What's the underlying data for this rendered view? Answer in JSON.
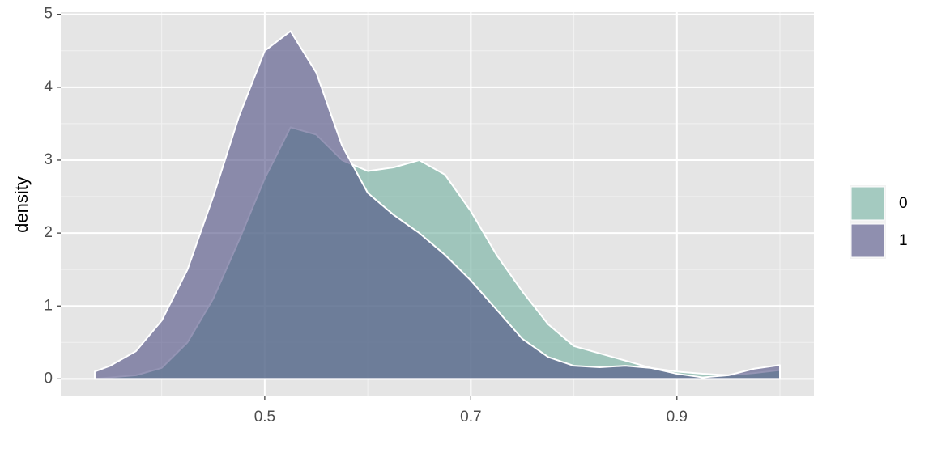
{
  "chart_data": {
    "type": "density",
    "y_label": "density",
    "x": [
      0.335,
      0.35,
      0.375,
      0.4,
      0.425,
      0.45,
      0.475,
      0.5,
      0.525,
      0.55,
      0.575,
      0.6,
      0.625,
      0.65,
      0.675,
      0.7,
      0.725,
      0.75,
      0.775,
      0.8,
      0.825,
      0.85,
      0.875,
      0.9,
      0.925,
      0.95,
      0.975,
      1.0
    ],
    "series": [
      {
        "name": "0",
        "color": "#70AF9E",
        "values": [
          0.0,
          0.02,
          0.05,
          0.15,
          0.5,
          1.1,
          1.9,
          2.75,
          3.45,
          3.35,
          3.0,
          2.85,
          2.9,
          3.0,
          2.8,
          2.3,
          1.7,
          1.2,
          0.75,
          0.45,
          0.35,
          0.25,
          0.15,
          0.1,
          0.07,
          0.05,
          0.08,
          0.12
        ]
      },
      {
        "name": "1",
        "color": "#4D4C82",
        "values": [
          0.1,
          0.18,
          0.38,
          0.8,
          1.5,
          2.5,
          3.6,
          4.5,
          4.77,
          4.2,
          3.2,
          2.55,
          2.25,
          2.0,
          1.7,
          1.35,
          0.95,
          0.55,
          0.3,
          0.18,
          0.16,
          0.18,
          0.15,
          0.07,
          0.02,
          0.05,
          0.14,
          0.19
        ]
      }
    ],
    "xlim": [
      0.302,
      1.033
    ],
    "ylim": [
      -0.24,
      5.03
    ],
    "xticks": [
      0.5,
      0.7,
      0.9
    ],
    "yticks": [
      0,
      1,
      2,
      3,
      4,
      5
    ],
    "grid": true,
    "legend": "right"
  }
}
